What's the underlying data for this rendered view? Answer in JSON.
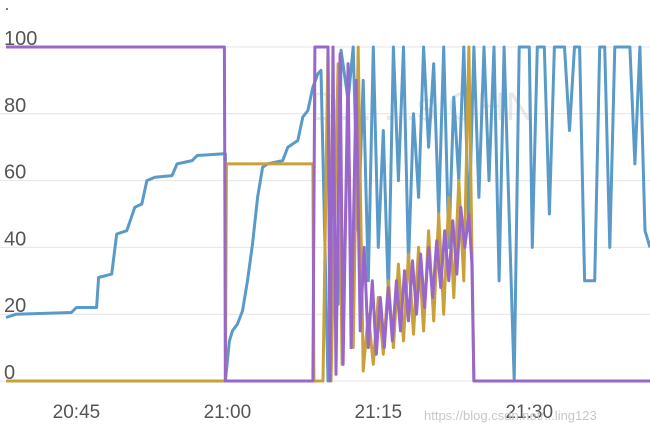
{
  "chart_data": {
    "type": "line",
    "x_unit": "minutes",
    "xlim": [
      "20:38",
      "21:42"
    ],
    "ylim": [
      0,
      100
    ],
    "xticks": [
      "20:45",
      "21:00",
      "21:15",
      "21:30"
    ],
    "yticks": [
      0,
      20,
      40,
      60,
      80,
      100
    ],
    "grid": true,
    "watermark": "D... ...s CHN",
    "credit": "https://blog.csdn.net/...ling123",
    "colors": {
      "blue": "#5a9ac8",
      "purple": "#9966cc",
      "gold": "#c9a13a",
      "grid": "#e4e4e4",
      "tick": "#555555"
    },
    "series": [
      {
        "color": "#5a9ac8",
        "points": [
          [
            "20:38.0",
            19
          ],
          [
            "20:39.0",
            20
          ],
          [
            "20:44.5",
            20.5
          ],
          [
            "20:45.0",
            22
          ],
          [
            "20:47.0",
            22
          ],
          [
            "20:47.2",
            31
          ],
          [
            "20:48.5",
            32
          ],
          [
            "20:49.0",
            44
          ],
          [
            "20:50.0",
            45
          ],
          [
            "20:50.8",
            52
          ],
          [
            "20:51.5",
            53
          ],
          [
            "20:52.0",
            60
          ],
          [
            "20:52.8",
            61
          ],
          [
            "20:54.5",
            61.5
          ],
          [
            "20:55.0",
            65
          ],
          [
            "20:56.5",
            66
          ],
          [
            "20:57.0",
            67.5
          ],
          [
            "20:59.5",
            68
          ],
          [
            "20:59.8",
            68
          ],
          [
            "20:59.8",
            0
          ],
          [
            "21:00.2",
            12
          ],
          [
            "21:00.5",
            15
          ],
          [
            "21:01.0",
            17
          ],
          [
            "21:01.5",
            21
          ],
          [
            "21:02.0",
            30
          ],
          [
            "21:02.5",
            41
          ],
          [
            "21:03.0",
            55
          ],
          [
            "21:03.5",
            64
          ],
          [
            "21:04.0",
            65
          ],
          [
            "21:05.5",
            66
          ],
          [
            "21:06.0",
            70
          ],
          [
            "21:06.5",
            71
          ],
          [
            "21:07.0",
            72
          ],
          [
            "21:07.5",
            79
          ],
          [
            "21:08.0",
            81
          ],
          [
            "21:08.5",
            88
          ],
          [
            "21:09.0",
            92
          ],
          [
            "21:09.3",
            93
          ],
          [
            "21:10.0",
            0
          ],
          [
            "21:10.2",
            22
          ],
          [
            "21:11.0",
            23
          ],
          [
            "21:11.3",
            99
          ],
          [
            "21:12.0",
            84
          ],
          [
            "21:12.5",
            100
          ],
          [
            "21:13.0",
            45
          ],
          [
            "21:13.5",
            90
          ],
          [
            "21:14.0",
            30
          ],
          [
            "21:14.5",
            100
          ],
          [
            "21:15.0",
            40
          ],
          [
            "21:15.5",
            75
          ],
          [
            "21:16.0",
            25
          ],
          [
            "21:16.5",
            100
          ],
          [
            "21:17.0",
            60
          ],
          [
            "21:17.5",
            100
          ],
          [
            "21:18.0",
            35
          ],
          [
            "21:18.5",
            80
          ],
          [
            "21:19.0",
            55
          ],
          [
            "21:19.5",
            100
          ],
          [
            "21:20.0",
            70
          ],
          [
            "21:20.5",
            95
          ],
          [
            "21:21.0",
            50
          ],
          [
            "21:21.5",
            100
          ],
          [
            "21:22.0",
            40
          ],
          [
            "21:22.5",
            85
          ],
          [
            "21:23.0",
            60
          ],
          [
            "21:23.5",
            100
          ],
          [
            "21:24.0",
            45
          ],
          [
            "21:24.5",
            100
          ],
          [
            "21:25.0",
            55
          ],
          [
            "21:25.5",
            100
          ],
          [
            "21:26.0",
            60
          ],
          [
            "21:26.5",
            100
          ],
          [
            "21:27.0",
            30
          ],
          [
            "21:27.5",
            100
          ],
          [
            "21:28.0",
            50
          ],
          [
            "21:28.5",
            0
          ],
          [
            "21:29.0",
            100
          ],
          [
            "21:30.0",
            100
          ],
          [
            "21:30.3",
            40
          ],
          [
            "21:30.8",
            100
          ],
          [
            "21:31.5",
            100
          ],
          [
            "21:32.0",
            50
          ],
          [
            "21:32.5",
            100
          ],
          [
            "21:33.5",
            100
          ],
          [
            "21:34.0",
            75
          ],
          [
            "21:34.5",
            100
          ],
          [
            "21:35.0",
            100
          ],
          [
            "21:35.5",
            30
          ],
          [
            "21:36.5",
            30
          ],
          [
            "21:37.0",
            100
          ],
          [
            "21:37.5",
            100
          ],
          [
            "21:38.0",
            40
          ],
          [
            "21:38.5",
            100
          ],
          [
            "21:40.0",
            100
          ],
          [
            "21:40.5",
            65
          ],
          [
            "21:41.0",
            100
          ],
          [
            "21:41.5",
            45
          ],
          [
            "21:42.0",
            40
          ]
        ]
      },
      {
        "color": "#c9a13a",
        "points": [
          [
            "20:38.0",
            0
          ],
          [
            "20:59.8",
            0
          ],
          [
            "20:59.9",
            65
          ],
          [
            "21:08.5",
            65
          ],
          [
            "21:08.6",
            0
          ],
          [
            "21:09.5",
            0
          ],
          [
            "21:10.0",
            100
          ],
          [
            "21:10.3",
            0
          ],
          [
            "21:11.0",
            95
          ],
          [
            "21:11.4",
            5
          ],
          [
            "21:12.0",
            80
          ],
          [
            "21:12.5",
            10
          ],
          [
            "21:13.0",
            100
          ],
          [
            "21:13.5",
            3
          ],
          [
            "21:14.0",
            20
          ],
          [
            "21:14.5",
            5
          ],
          [
            "21:15.0",
            25
          ],
          [
            "21:15.5",
            8
          ],
          [
            "21:16.0",
            30
          ],
          [
            "21:16.5",
            10
          ],
          [
            "21:17.0",
            35
          ],
          [
            "21:17.5",
            12
          ],
          [
            "21:18.0",
            38
          ],
          [
            "21:18.5",
            14
          ],
          [
            "21:19.0",
            40
          ],
          [
            "21:19.5",
            15
          ],
          [
            "21:20.0",
            45
          ],
          [
            "21:20.5",
            18
          ],
          [
            "21:21.0",
            50
          ],
          [
            "21:21.5",
            20
          ],
          [
            "21:22.0",
            55
          ],
          [
            "21:22.5",
            25
          ],
          [
            "21:23.0",
            60
          ],
          [
            "21:23.5",
            30
          ],
          [
            "21:24.0",
            100
          ],
          [
            "21:24.5",
            0
          ],
          [
            "21:25.0",
            0
          ],
          [
            "21:42.0",
            0
          ]
        ]
      },
      {
        "color": "#9966cc",
        "points": [
          [
            "20:38.0",
            100
          ],
          [
            "20:59.7",
            100
          ],
          [
            "20:59.8",
            0
          ],
          [
            "21:08.5",
            0
          ],
          [
            "21:08.7",
            100
          ],
          [
            "21:10.0",
            100
          ],
          [
            "21:10.2",
            0
          ],
          [
            "21:10.5",
            100
          ],
          [
            "21:10.8",
            2
          ],
          [
            "21:11.2",
            98
          ],
          [
            "21:11.5",
            5
          ],
          [
            "21:12.0",
            95
          ],
          [
            "21:12.3",
            10
          ],
          [
            "21:12.8",
            90
          ],
          [
            "21:13.2",
            15
          ],
          [
            "21:13.6",
            40
          ],
          [
            "21:14.0",
            10
          ],
          [
            "21:14.4",
            30
          ],
          [
            "21:14.8",
            8
          ],
          [
            "21:15.2",
            25
          ],
          [
            "21:15.6",
            10
          ],
          [
            "21:16.0",
            28
          ],
          [
            "21:16.4",
            12
          ],
          [
            "21:16.8",
            30
          ],
          [
            "21:17.2",
            15
          ],
          [
            "21:17.6",
            33
          ],
          [
            "21:18.0",
            18
          ],
          [
            "21:18.4",
            36
          ],
          [
            "21:18.8",
            20
          ],
          [
            "21:19.2",
            38
          ],
          [
            "21:19.6",
            22
          ],
          [
            "21:20.0",
            40
          ],
          [
            "21:20.4",
            25
          ],
          [
            "21:20.8",
            42
          ],
          [
            "21:21.2",
            28
          ],
          [
            "21:21.6",
            45
          ],
          [
            "21:22.0",
            30
          ],
          [
            "21:22.4",
            48
          ],
          [
            "21:22.8",
            32
          ],
          [
            "21:23.2",
            52
          ],
          [
            "21:23.6",
            40
          ],
          [
            "21:24.0",
            50
          ],
          [
            "21:24.3",
            35
          ],
          [
            "21:24.5",
            0
          ],
          [
            "21:42.0",
            0
          ]
        ]
      }
    ]
  }
}
